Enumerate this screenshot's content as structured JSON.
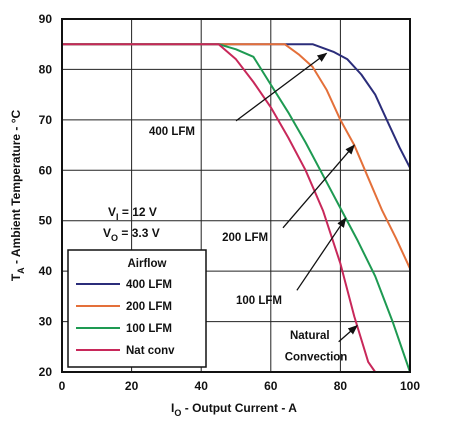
{
  "chart_data": {
    "type": "line",
    "xlabel": "Iₒ - Output Current - A",
    "xlabel_sub": "O",
    "xlabel_main": "I",
    "xlabel_rest": " - Output Current - A",
    "ylabel_main": "T",
    "ylabel_sub": "A",
    "ylabel_rest": " - Ambient Temperature - °C",
    "xlim": [
      0,
      100
    ],
    "ylim": [
      20,
      90
    ],
    "xticks": [
      0,
      20,
      40,
      60,
      80,
      100
    ],
    "yticks": [
      20,
      30,
      40,
      50,
      60,
      70,
      80,
      90
    ],
    "grid": true,
    "legend": {
      "title": "Airflow",
      "placement": "bottom-left",
      "entries": [
        "400 LFM",
        "200 LFM",
        "100 LFM",
        "Nat conv"
      ]
    },
    "conditions": {
      "vi_main": "V",
      "vi_sub": "I",
      "vi_rest": " = 12 V",
      "vo_main": "V",
      "vo_sub": "O",
      "vo_rest": " = 3.3 V"
    },
    "series": [
      {
        "name": "400 LFM",
        "color": "#2b2d7a",
        "x": [
          0,
          72,
          78,
          82,
          86,
          90,
          94,
          97,
          100
        ],
        "y": [
          85,
          85,
          83.5,
          82,
          79,
          75,
          69,
          64.5,
          60.5
        ]
      },
      {
        "name": "200 LFM",
        "color": "#e4703a",
        "x": [
          0,
          64,
          68,
          72,
          76,
          80,
          84,
          88,
          92,
          96,
          100
        ],
        "y": [
          85,
          85,
          83,
          80.5,
          76,
          70,
          65,
          58.5,
          52,
          46.5,
          40.5
        ]
      },
      {
        "name": "100 LFM",
        "color": "#1e9a52",
        "x": [
          0,
          45,
          50,
          55,
          60,
          65,
          70,
          75,
          80,
          85,
          90,
          95,
          100
        ],
        "y": [
          85,
          85,
          84,
          82.5,
          77,
          71.5,
          65.5,
          59,
          52.5,
          46,
          39,
          30,
          20
        ]
      },
      {
        "name": "Nat conv",
        "color": "#c8285a",
        "x": [
          0,
          45,
          50,
          55,
          60,
          65,
          70,
          75,
          80,
          84,
          88,
          90
        ],
        "y": [
          85,
          85,
          82,
          77.5,
          72.5,
          66.5,
          60,
          52,
          41.5,
          31,
          22,
          20
        ]
      }
    ],
    "annotations": [
      {
        "text": "400 LFM",
        "text_x": 25,
        "text_y": 67,
        "arrow_from": [
          50,
          69.8
        ],
        "arrow_to": [
          76,
          83.2
        ]
      },
      {
        "text": "200 LFM",
        "text_x": 46,
        "text_y": 46,
        "arrow_from": [
          63.5,
          48.6
        ],
        "arrow_to": [
          84,
          65
        ]
      },
      {
        "text": "100 LFM",
        "text_x": 50,
        "text_y": 33.5,
        "arrow_from": [
          67.5,
          36.2
        ],
        "arrow_to": [
          81.5,
          50.5
        ]
      },
      {
        "text": "Natural",
        "text_x": 65.5,
        "text_y": 26.5,
        "arrow_from": [
          79.5,
          26
        ],
        "arrow_to": [
          84.8,
          29.2
        ]
      },
      {
        "text": "Convection",
        "text_x": 64,
        "text_y": 22.3
      }
    ]
  }
}
